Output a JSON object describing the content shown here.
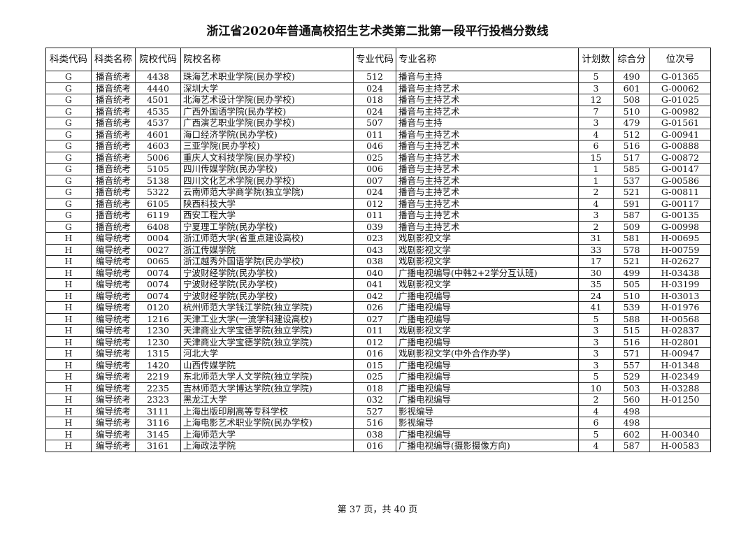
{
  "title": "浙江省2020年普通高校招生艺术类第二批第一段平行投档分数线",
  "headers": [
    "科类代码",
    "科类名称",
    "院校代码",
    "院校名称",
    "专业代码",
    "专业名称",
    "计划数",
    "综合分",
    "位次号"
  ],
  "rows": [
    [
      "G",
      "播音统考",
      "4438",
      "珠海艺术职业学院(民办学校)",
      "512",
      "播音与主持",
      "5",
      "490",
      "G-01365"
    ],
    [
      "G",
      "播音统考",
      "4440",
      "深圳大学",
      "024",
      "播音与主持艺术",
      "3",
      "601",
      "G-00062"
    ],
    [
      "G",
      "播音统考",
      "4501",
      "北海艺术设计学院(民办学校)",
      "018",
      "播音与主持艺术",
      "12",
      "508",
      "G-01025"
    ],
    [
      "G",
      "播音统考",
      "4535",
      "广西外国语学院(民办学校)",
      "024",
      "播音与主持艺术",
      "7",
      "510",
      "G-00982"
    ],
    [
      "G",
      "播音统考",
      "4537",
      "广西演艺职业学院(民办学校)",
      "507",
      "播音与主持",
      "3",
      "479",
      "G-01561"
    ],
    [
      "G",
      "播音统考",
      "4601",
      "海口经济学院(民办学校)",
      "011",
      "播音与主持艺术",
      "4",
      "512",
      "G-00941"
    ],
    [
      "G",
      "播音统考",
      "4603",
      "三亚学院(民办学校)",
      "046",
      "播音与主持艺术",
      "6",
      "516",
      "G-00888"
    ],
    [
      "G",
      "播音统考",
      "5006",
      "重庆人文科技学院(民办学校)",
      "025",
      "播音与主持艺术",
      "15",
      "517",
      "G-00872"
    ],
    [
      "G",
      "播音统考",
      "5105",
      "四川传媒学院(民办学校)",
      "006",
      "播音与主持艺术",
      "1",
      "585",
      "G-00147"
    ],
    [
      "G",
      "播音统考",
      "5138",
      "四川文化艺术学院(民办学校)",
      "007",
      "播音与主持艺术",
      "1",
      "537",
      "G-00586"
    ],
    [
      "G",
      "播音统考",
      "5322",
      "云南师范大学商学院(独立学院)",
      "024",
      "播音与主持艺术",
      "2",
      "521",
      "G-00811"
    ],
    [
      "G",
      "播音统考",
      "6105",
      "陕西科技大学",
      "012",
      "播音与主持艺术",
      "4",
      "591",
      "G-00117"
    ],
    [
      "G",
      "播音统考",
      "6119",
      "西安工程大学",
      "011",
      "播音与主持艺术",
      "3",
      "587",
      "G-00135"
    ],
    [
      "G",
      "播音统考",
      "6408",
      "宁夏理工学院(民办学校)",
      "039",
      "播音与主持艺术",
      "2",
      "509",
      "G-00998"
    ],
    [
      "H",
      "编导统考",
      "0004",
      "浙江师范大学(省重点建设高校)",
      "023",
      "戏剧影视文学",
      "31",
      "581",
      "H-00695"
    ],
    [
      "H",
      "编导统考",
      "0027",
      "浙江传媒学院",
      "043",
      "戏剧影视文学",
      "33",
      "578",
      "H-00759"
    ],
    [
      "H",
      "编导统考",
      "0065",
      "浙江越秀外国语学院(民办学校)",
      "038",
      "戏剧影视文学",
      "17",
      "521",
      "H-02627"
    ],
    [
      "H",
      "编导统考",
      "0074",
      "宁波财经学院(民办学校)",
      "040",
      "广播电视编导(中韩2+2学分互认班)",
      "30",
      "499",
      "H-03438"
    ],
    [
      "H",
      "编导统考",
      "0074",
      "宁波财经学院(民办学校)",
      "041",
      "戏剧影视文学",
      "35",
      "505",
      "H-03199"
    ],
    [
      "H",
      "编导统考",
      "0074",
      "宁波财经学院(民办学校)",
      "042",
      "广播电视编导",
      "24",
      "510",
      "H-03013"
    ],
    [
      "H",
      "编导统考",
      "0120",
      "杭州师范大学钱江学院(独立学院)",
      "026",
      "广播电视编导",
      "41",
      "539",
      "H-01976"
    ],
    [
      "H",
      "编导统考",
      "1216",
      "天津工业大学(一流学科建设高校)",
      "027",
      "广播电视编导",
      "5",
      "588",
      "H-00568"
    ],
    [
      "H",
      "编导统考",
      "1230",
      "天津商业大学宝德学院(独立学院)",
      "011",
      "戏剧影视文学",
      "3",
      "515",
      "H-02837"
    ],
    [
      "H",
      "编导统考",
      "1230",
      "天津商业大学宝德学院(独立学院)",
      "012",
      "广播电视编导",
      "3",
      "516",
      "H-02801"
    ],
    [
      "H",
      "编导统考",
      "1315",
      "河北大学",
      "016",
      "戏剧影视文学(中外合作办学)",
      "3",
      "571",
      "H-00947"
    ],
    [
      "H",
      "编导统考",
      "1420",
      "山西传媒学院",
      "015",
      "广播电视编导",
      "3",
      "557",
      "H-01348"
    ],
    [
      "H",
      "编导统考",
      "2219",
      "东北师范大学人文学院(独立学院)",
      "025",
      "广播电视编导",
      "5",
      "529",
      "H-02349"
    ],
    [
      "H",
      "编导统考",
      "2235",
      "吉林师范大学博达学院(独立学院)",
      "018",
      "广播电视编导",
      "10",
      "503",
      "H-03288"
    ],
    [
      "H",
      "编导统考",
      "2323",
      "黑龙江大学",
      "032",
      "广播电视编导",
      "2",
      "560",
      "H-01250"
    ],
    [
      "H",
      "编导统考",
      "3111",
      "上海出版印刷高等专科学校",
      "527",
      "影视编导",
      "4",
      "498",
      ""
    ],
    [
      "H",
      "编导统考",
      "3116",
      "上海电影艺术职业学院(民办学校)",
      "516",
      "影视编导",
      "6",
      "498",
      ""
    ],
    [
      "H",
      "编导统考",
      "3145",
      "上海师范大学",
      "038",
      "广播电视编导",
      "5",
      "602",
      "H-00340"
    ],
    [
      "H",
      "编导统考",
      "3161",
      "上海政法学院",
      "016",
      "广播电视编导(摄影摄像方向)",
      "4",
      "587",
      "H-00583"
    ]
  ],
  "footer": "第 37 页，共 40 页"
}
